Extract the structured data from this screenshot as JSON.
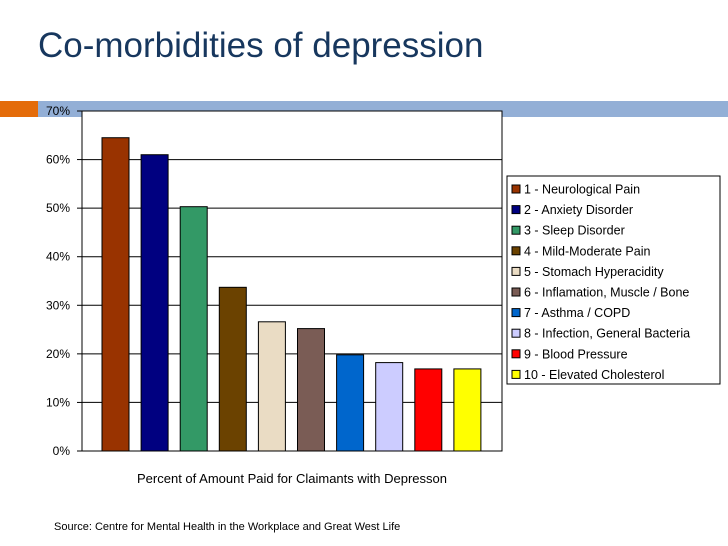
{
  "slide": {
    "title": "Co-morbidities of depression",
    "source": "Source:  Centre for Mental Health in the Workplace and Great West Life"
  },
  "colors": {
    "title": "#17375e",
    "accent_orange": "#e46c0a",
    "accent_blue": "#93afd6"
  },
  "chart_data": {
    "type": "bar",
    "title": "",
    "xlabel": "Percent of Amount Paid for Claimants with Depresson",
    "ylabel": "",
    "ylim": [
      0,
      70
    ],
    "yticks": [
      0,
      10,
      20,
      30,
      40,
      50,
      60,
      70
    ],
    "ytick_labels": [
      "0%",
      "10%",
      "20%",
      "30%",
      "40%",
      "50%",
      "60%",
      "70%"
    ],
    "grid": true,
    "legend_position": "right",
    "series": [
      {
        "name": "1 - Neurological Pain",
        "value": 64.5,
        "color": "#993300"
      },
      {
        "name": "2 - Anxiety Disorder",
        "value": 61,
        "color": "#000080"
      },
      {
        "name": "3 - Sleep Disorder",
        "value": 50.3,
        "color": "#339966"
      },
      {
        "name": "4 - Mild-Moderate Pain",
        "value": 33.7,
        "color": "#6b4200"
      },
      {
        "name": "5 - Stomach Hyperacidity",
        "value": 26.6,
        "color": "#eadcc4"
      },
      {
        "name": "6 - Inflamation, Muscle /  Bone",
        "value": 25.2,
        "color": "#7a5c55"
      },
      {
        "name": "7 - Asthma / COPD",
        "value": 19.8,
        "color": "#0066cc"
      },
      {
        "name": "8 - Infection, General Bacteria",
        "value": 18.2,
        "color": "#ccccff"
      },
      {
        "name": "9 - Blood Pressure",
        "value": 16.9,
        "color": "#ff0000"
      },
      {
        "name": "10 - Elevated Cholesterol",
        "value": 16.9,
        "color": "#ffff00"
      }
    ]
  }
}
